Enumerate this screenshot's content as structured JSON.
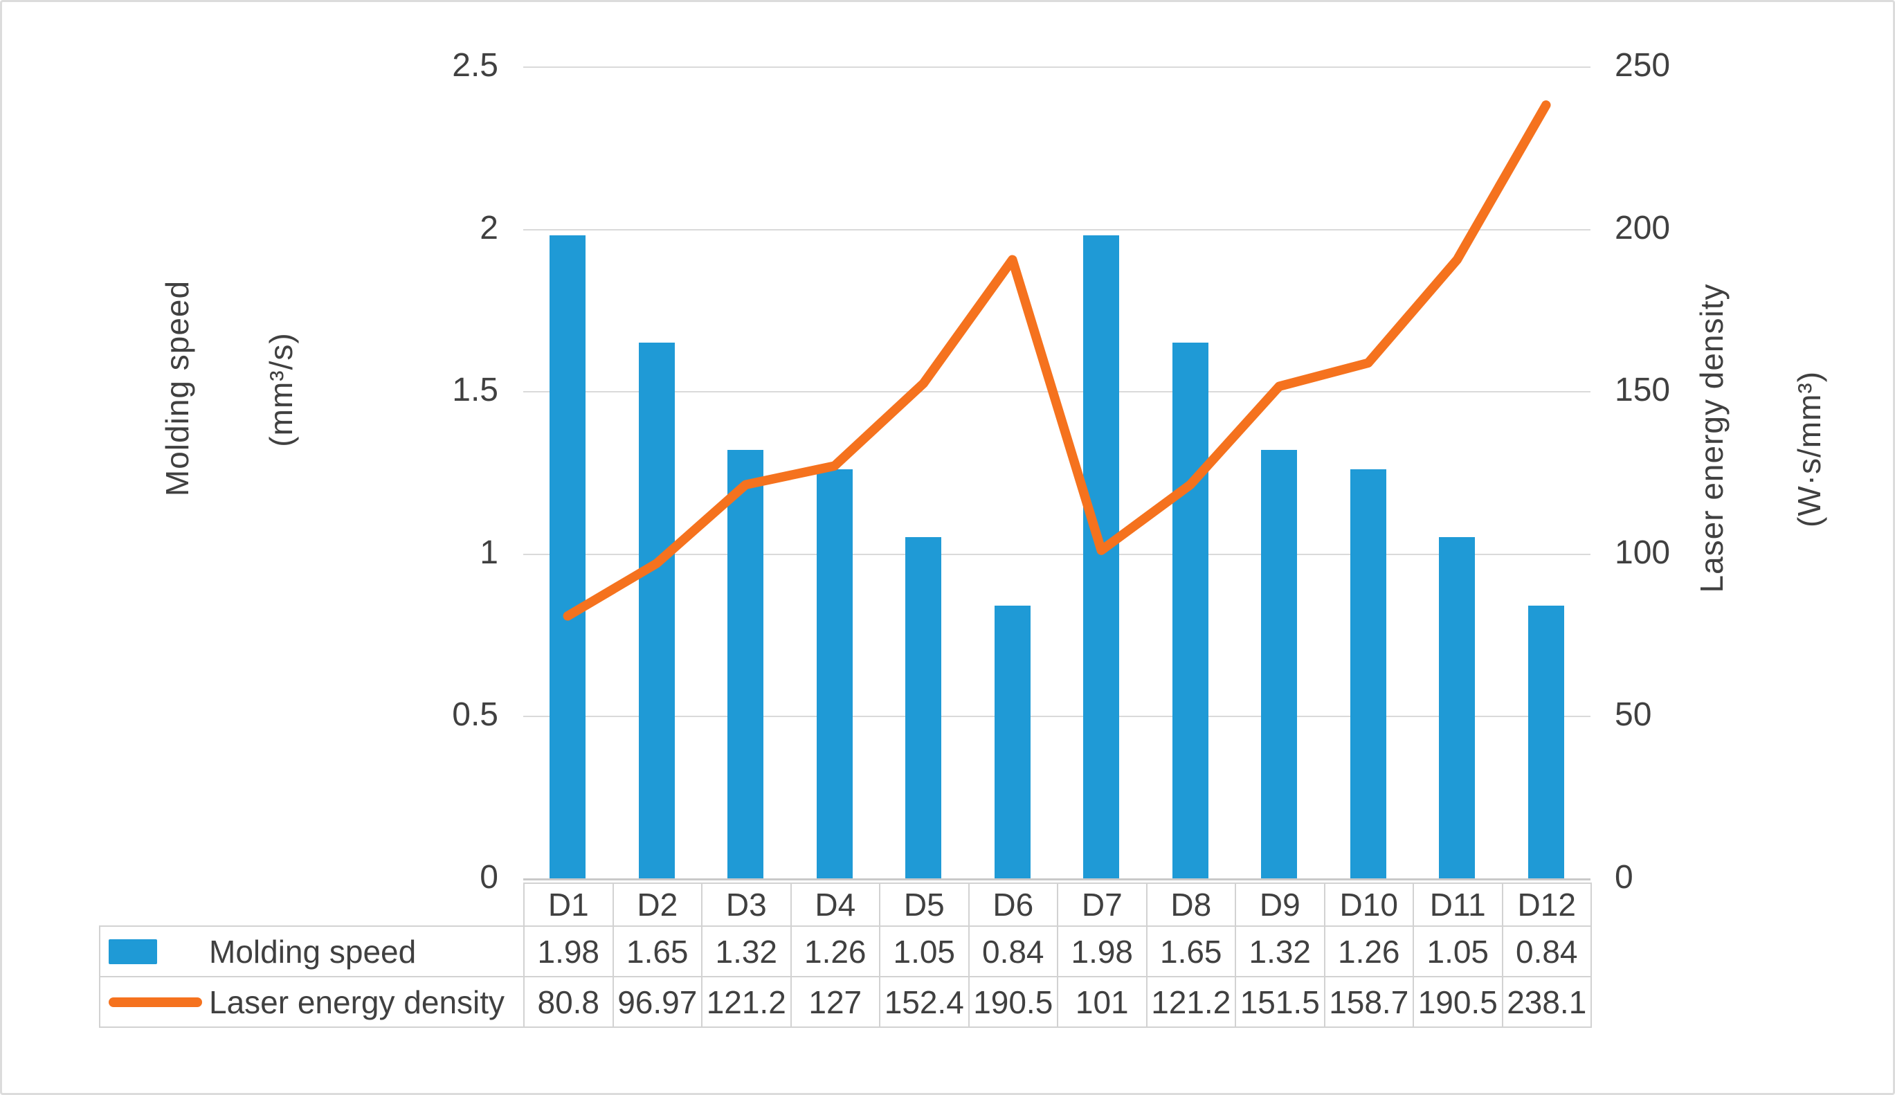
{
  "axes": {
    "left": {
      "title": "Molding speed",
      "unit": "(mm³/s)",
      "ticks": [
        "2.5",
        "2",
        "1.5",
        "1",
        "0.5",
        "0"
      ]
    },
    "right": {
      "title": "Laser energy density",
      "unit": "(W·s/mm³)",
      "ticks": [
        "250",
        "200",
        "150",
        "100",
        "50",
        "0"
      ]
    }
  },
  "chart_data": {
    "type": "combo",
    "categories": [
      "D1",
      "D2",
      "D3",
      "D4",
      "D5",
      "D6",
      "D7",
      "D8",
      "D9",
      "D10",
      "D11",
      "D12"
    ],
    "series": [
      {
        "name": "Molding speed",
        "chart_type": "bar",
        "axis": "left",
        "color": "#1f9ad6",
        "values": [
          1.98,
          1.65,
          1.32,
          1.26,
          1.05,
          0.84,
          1.98,
          1.65,
          1.32,
          1.26,
          1.05,
          0.84
        ],
        "display_values": [
          "1.98",
          "1.65",
          "1.32",
          "1.26",
          "1.05",
          "0.84",
          "1.98",
          "1.65",
          "1.32",
          "1.26",
          "1.05",
          "0.84"
        ]
      },
      {
        "name": "Laser energy density",
        "chart_type": "line",
        "axis": "right",
        "color": "#f5721e",
        "values": [
          80.8,
          96.97,
          121.2,
          127,
          152.4,
          190.5,
          101,
          121.2,
          151.5,
          158.7,
          190.5,
          238.1
        ],
        "display_values": [
          "80.8",
          "96.97",
          "121.2",
          "127",
          "152.4",
          "190.5",
          "101",
          "121.2",
          "151.5",
          "158.7",
          "190.5",
          "238.1"
        ]
      }
    ],
    "left_ylim": [
      0,
      2.5
    ],
    "right_ylim": [
      0,
      250
    ],
    "left_ylabel": "Molding speed (mm³/s)",
    "right_ylabel": "Laser energy density (W·s/mm³)",
    "grid": true,
    "legend_position": "data-table-below"
  },
  "colors": {
    "bar": "#1f9ad6",
    "line": "#f5721e",
    "gridline": "#dadada",
    "axis_line": "#c9c9c9",
    "table_border": "#d2d2d2",
    "text": "#404040",
    "frame": "#dcdcdc"
  }
}
